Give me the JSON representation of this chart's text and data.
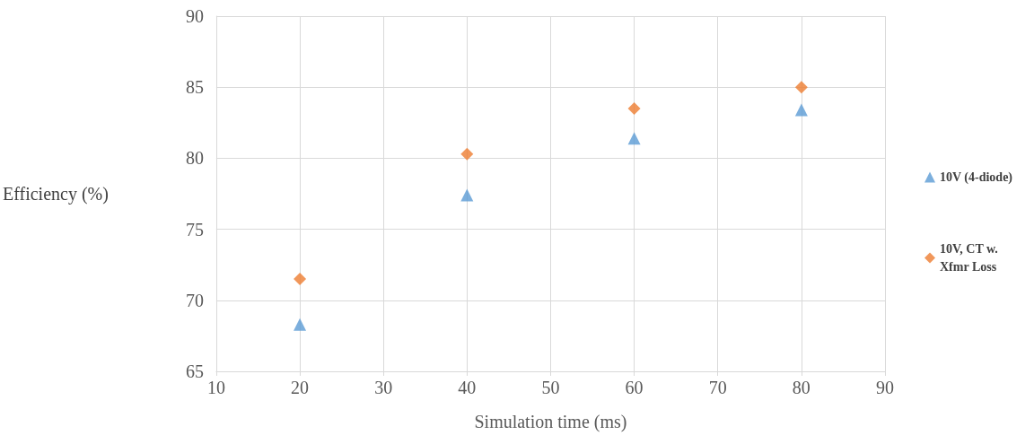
{
  "chart_data": {
    "type": "scatter",
    "xlabel": "Simulation time (ms)",
    "ylabel": "Efficiency (%)",
    "x": [
      20,
      40,
      60,
      80
    ],
    "series": [
      {
        "name": "10V (4-diode)",
        "color": "#5b9bd5",
        "marker": "triangle",
        "values": [
          68.3,
          77.4,
          81.4,
          83.4
        ]
      },
      {
        "name": "10V, CT w. Xfmr Loss",
        "color": "#ed7d31",
        "marker": "diamond",
        "values": [
          71.5,
          80.3,
          83.5,
          85.0
        ]
      }
    ],
    "xlim": [
      10,
      90
    ],
    "xticks": [
      10,
      20,
      30,
      40,
      50,
      60,
      70,
      80,
      90
    ],
    "ylim": [
      65,
      90
    ],
    "yticks": [
      65,
      70,
      75,
      80,
      85,
      90
    ],
    "grid": true,
    "legend": "right"
  }
}
